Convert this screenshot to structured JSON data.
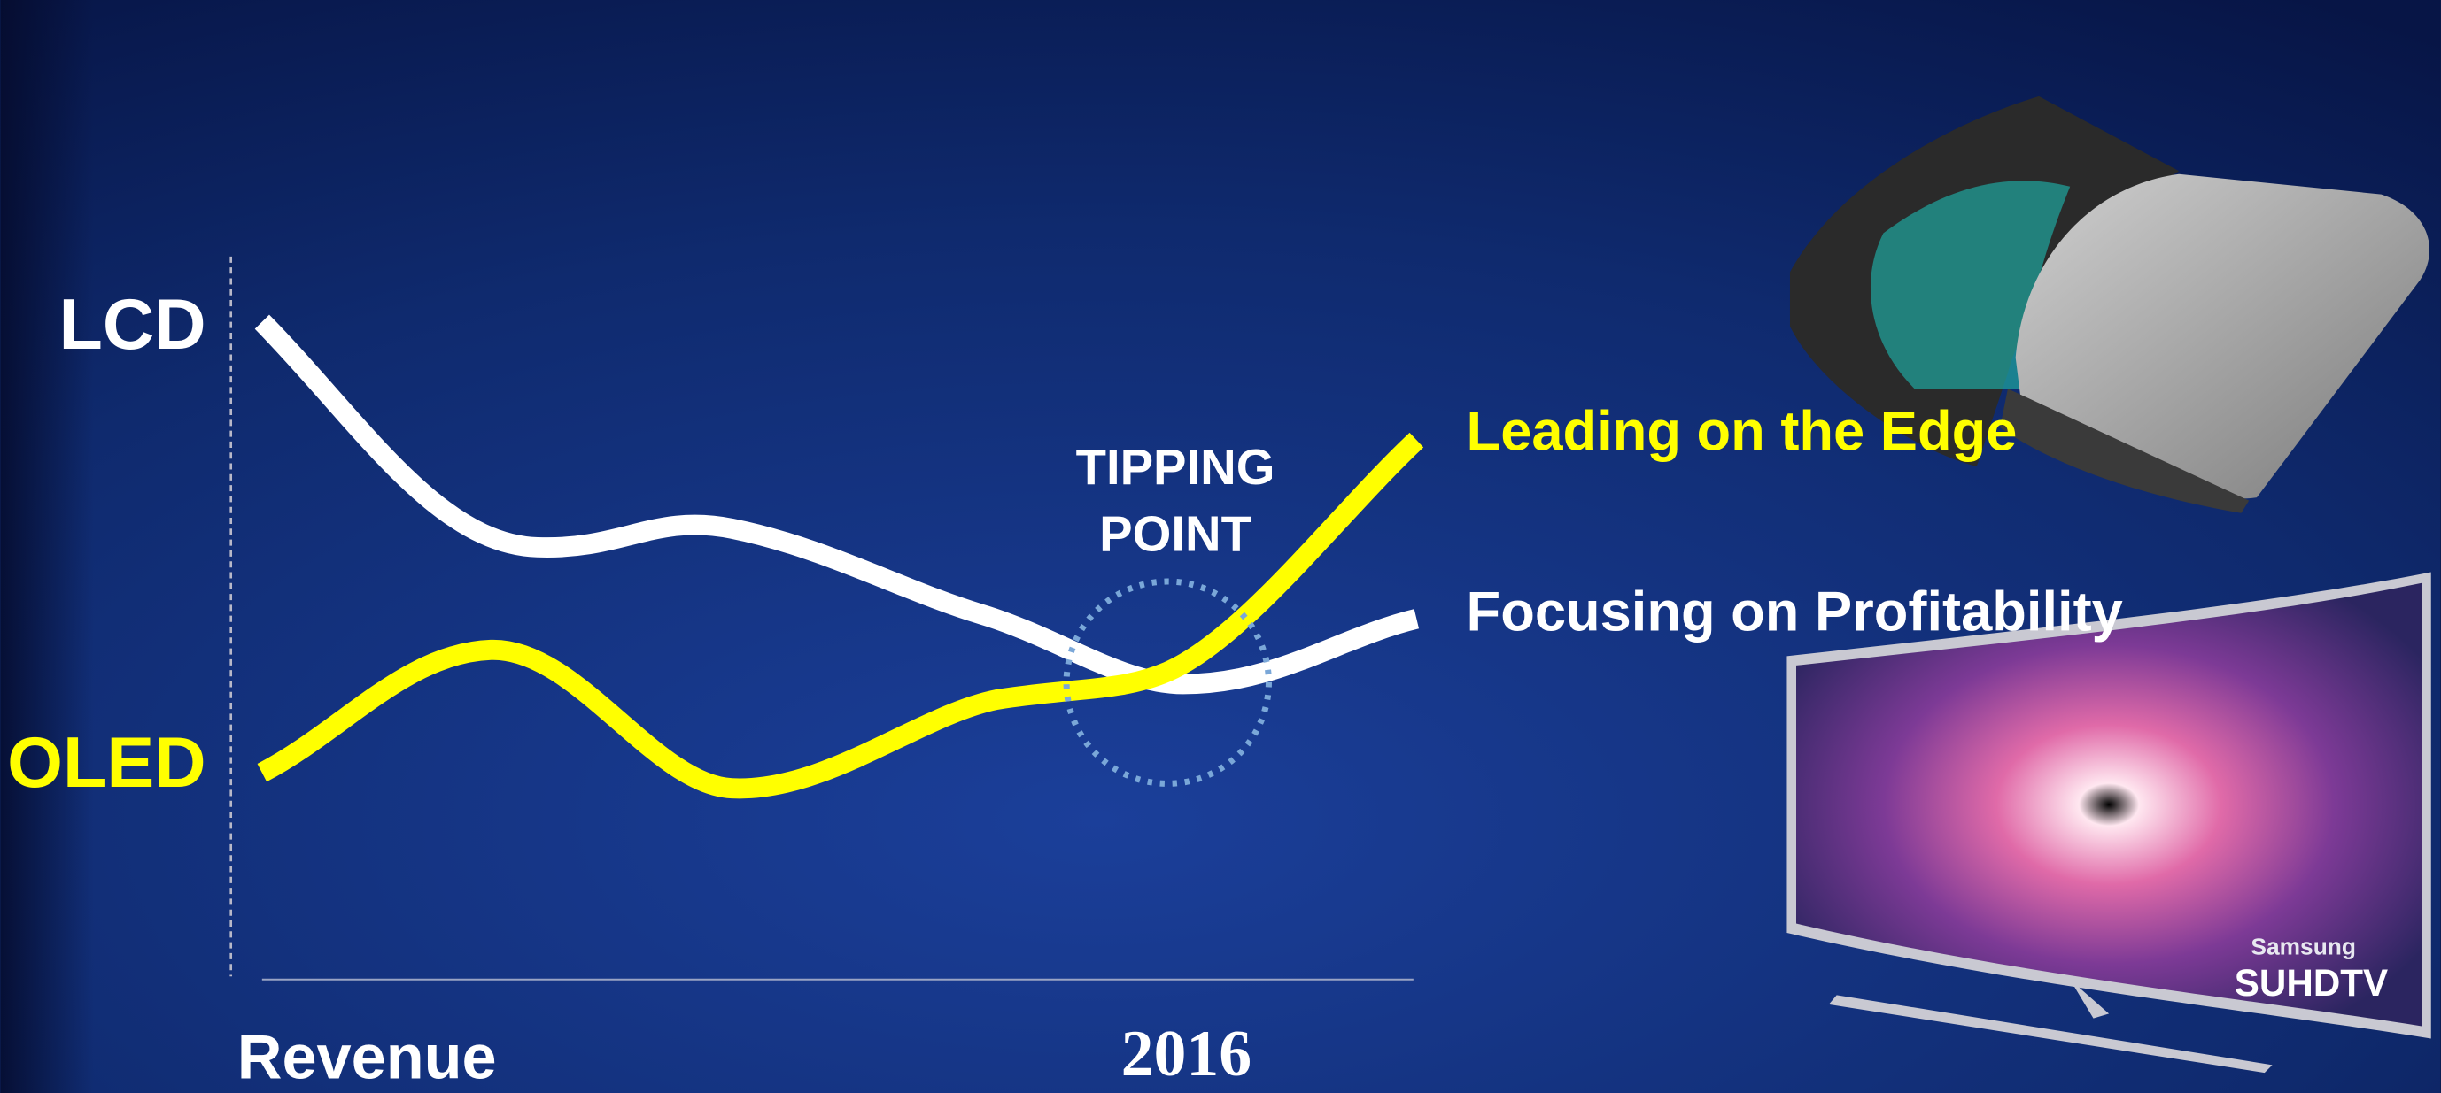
{
  "labels": {
    "lcd": "LCD",
    "oled": "OLED"
  },
  "x_axis": {
    "label": "Revenue",
    "marker": "2016"
  },
  "annotation": {
    "lines": [
      "TIPPING",
      "POINT"
    ]
  },
  "outcomes": {
    "oled": "Leading on the Edge",
    "lcd": "Focusing on Profitability"
  },
  "product": {
    "brand": "Samsung",
    "model": "SUHDTV"
  }
}
